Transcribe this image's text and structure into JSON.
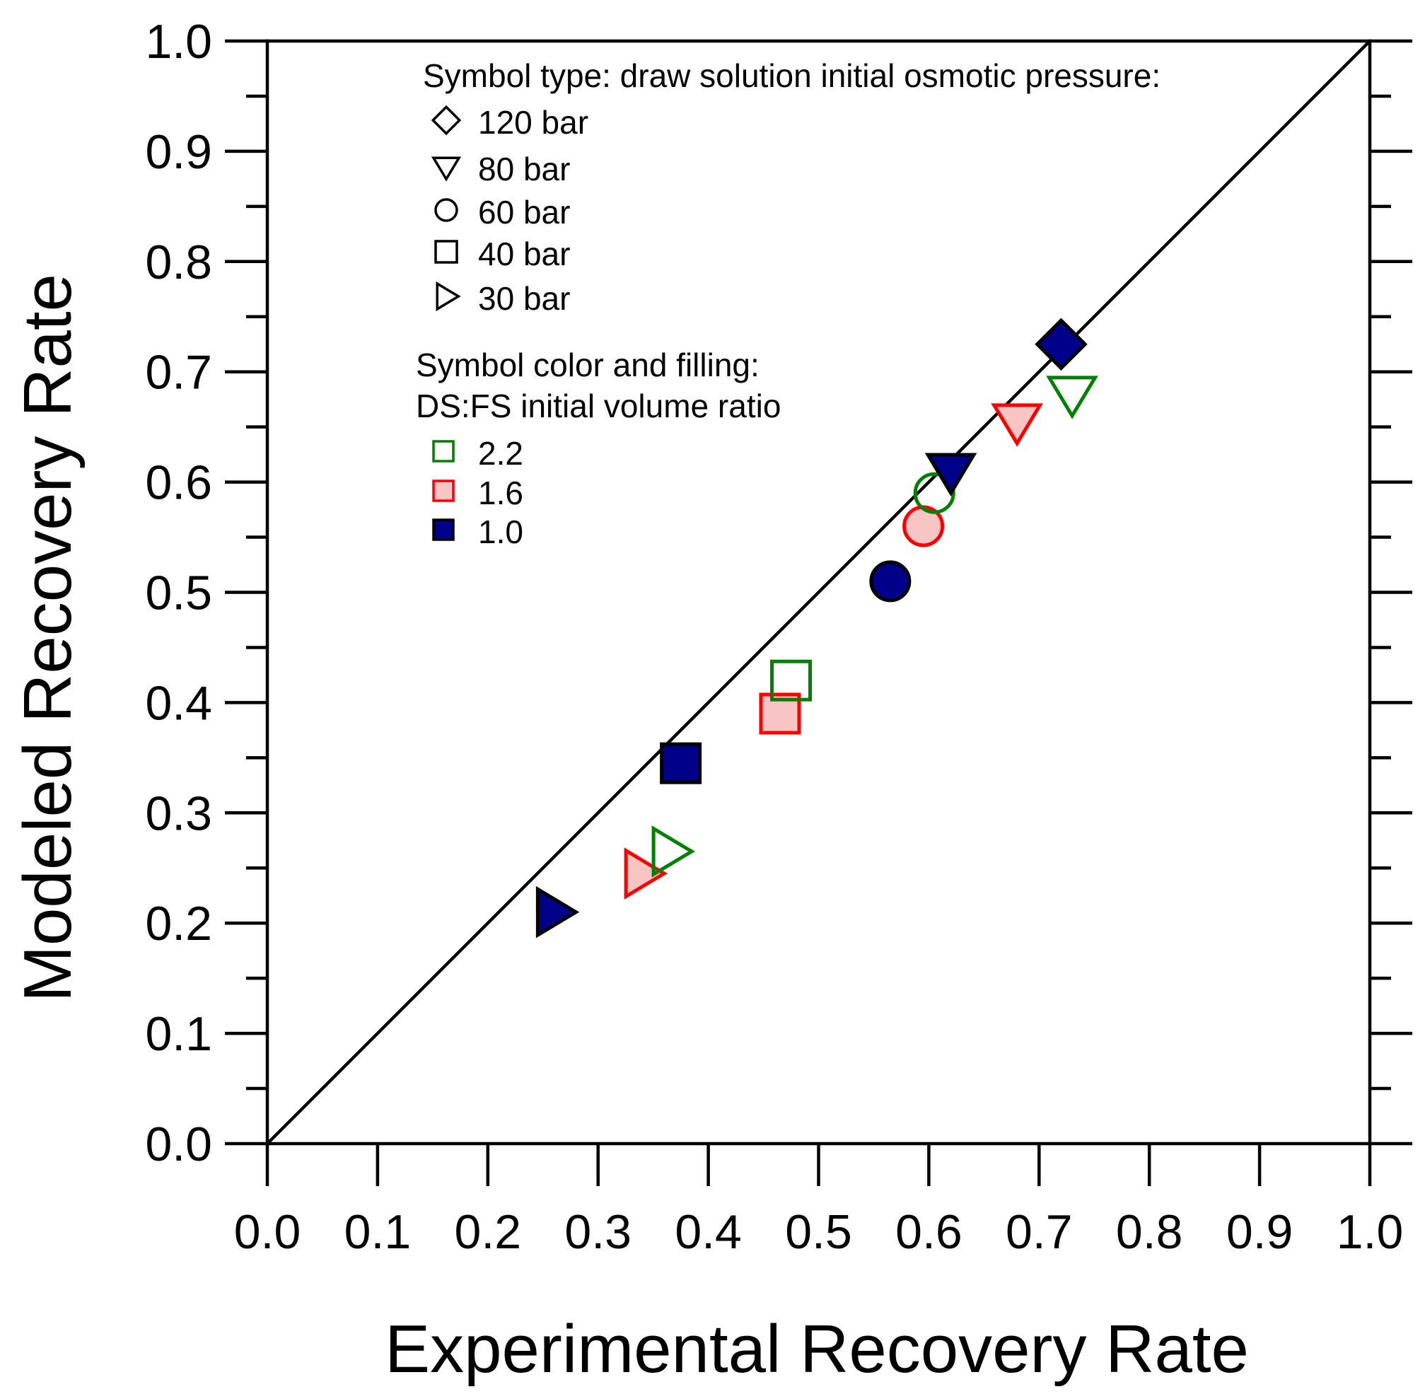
{
  "chart_data": {
    "type": "scatter",
    "xlabel": "Experimental Recovery Rate",
    "ylabel": "Modeled Recovery Rate",
    "xlim": [
      0.0,
      1.0
    ],
    "ylim": [
      0.0,
      1.0
    ],
    "xticks": [
      "0.0",
      "0.1",
      "0.2",
      "0.3",
      "0.4",
      "0.5",
      "0.6",
      "0.7",
      "0.8",
      "0.9",
      "1.0"
    ],
    "yticks": [
      "0.0",
      "0.1",
      "0.2",
      "0.3",
      "0.4",
      "0.5",
      "0.6",
      "0.7",
      "0.8",
      "0.9",
      "1.0"
    ],
    "reference_line": {
      "from": [
        0,
        0
      ],
      "to": [
        1,
        1
      ]
    },
    "legend": {
      "symbol_title": "Symbol type: draw solution initial osmotic pressure:",
      "symbols": [
        {
          "shape": "diamond",
          "label": "120 bar"
        },
        {
          "shape": "triangle-down",
          "label": "80 bar"
        },
        {
          "shape": "circle",
          "label": "60 bar"
        },
        {
          "shape": "square",
          "label": "40 bar"
        },
        {
          "shape": "triangle-right",
          "label": "30 bar"
        }
      ],
      "color_title_line1": "Symbol color and filling:",
      "color_title_line2": "DS:FS initial volume ratio",
      "colors": [
        {
          "label": "2.2",
          "stroke": "#008000",
          "fill": "none"
        },
        {
          "label": "1.6",
          "stroke": "#ff0000",
          "fill": "#f9c4c4"
        },
        {
          "label": "1.0",
          "stroke": "#000000",
          "fill": "#00008b"
        }
      ]
    },
    "points": [
      {
        "x": 0.26,
        "y": 0.21,
        "shape": "triangle-right",
        "ratio": "1.0"
      },
      {
        "x": 0.34,
        "y": 0.245,
        "shape": "triangle-right",
        "ratio": "1.6"
      },
      {
        "x": 0.365,
        "y": 0.265,
        "shape": "triangle-right",
        "ratio": "2.2"
      },
      {
        "x": 0.375,
        "y": 0.345,
        "shape": "square",
        "ratio": "1.0"
      },
      {
        "x": 0.465,
        "y": 0.39,
        "shape": "square",
        "ratio": "1.6"
      },
      {
        "x": 0.475,
        "y": 0.42,
        "shape": "square",
        "ratio": "2.2"
      },
      {
        "x": 0.565,
        "y": 0.51,
        "shape": "circle",
        "ratio": "1.0"
      },
      {
        "x": 0.595,
        "y": 0.56,
        "shape": "circle",
        "ratio": "1.6"
      },
      {
        "x": 0.605,
        "y": 0.59,
        "shape": "circle",
        "ratio": "2.2"
      },
      {
        "x": 0.62,
        "y": 0.61,
        "shape": "triangle-down",
        "ratio": "1.0"
      },
      {
        "x": 0.68,
        "y": 0.655,
        "shape": "triangle-down",
        "ratio": "1.6"
      },
      {
        "x": 0.73,
        "y": 0.68,
        "shape": "triangle-down",
        "ratio": "2.2"
      },
      {
        "x": 0.72,
        "y": 0.725,
        "shape": "diamond",
        "ratio": "1.0"
      }
    ]
  }
}
